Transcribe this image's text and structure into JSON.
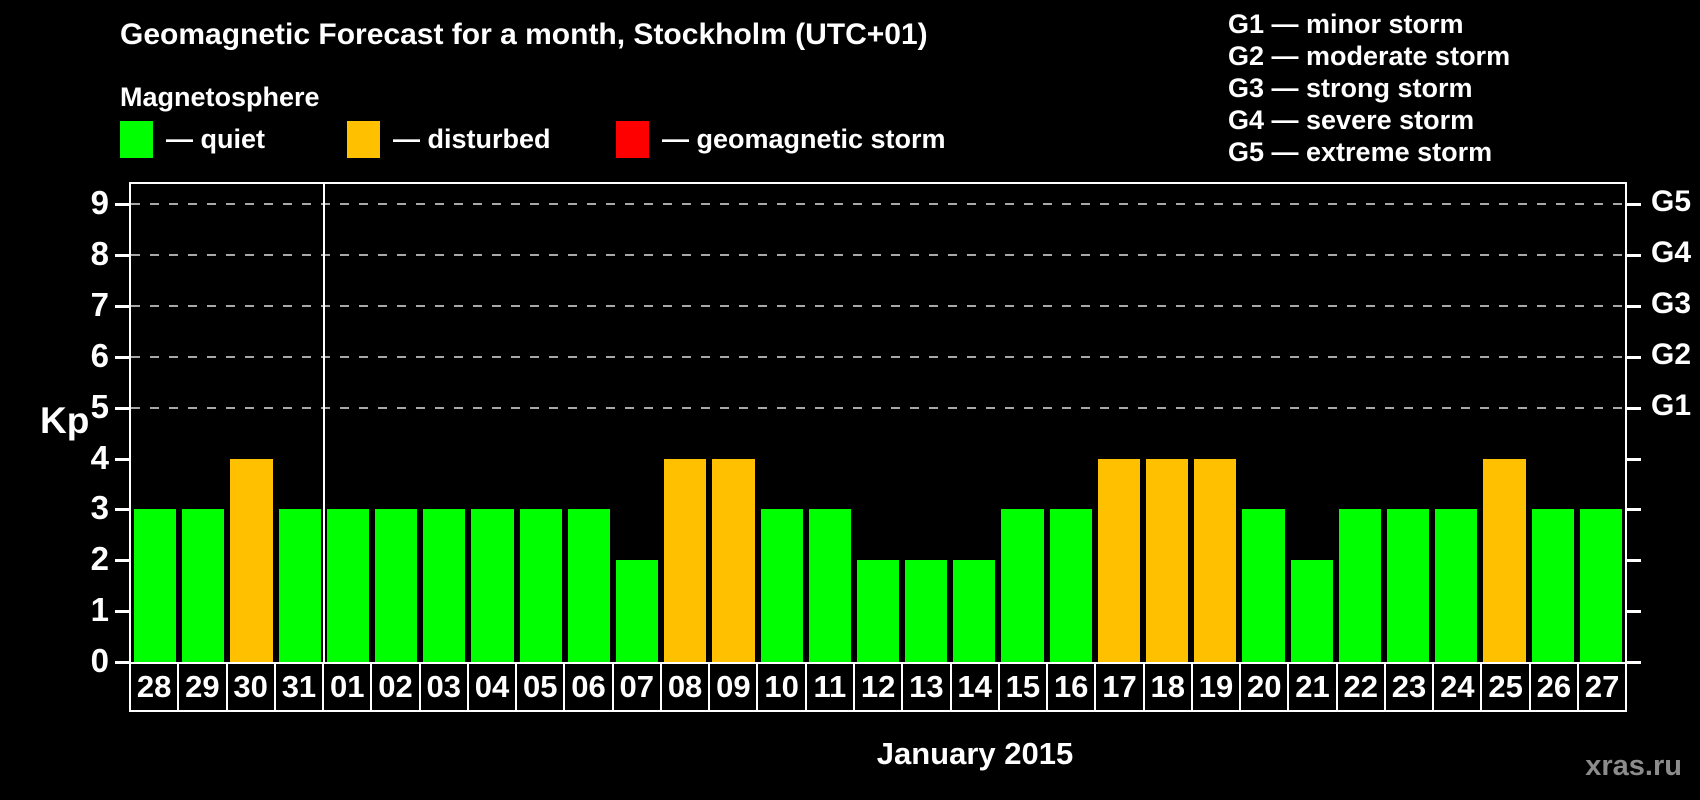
{
  "header": {
    "title": "Geomagnetic Forecast for a month, Stockholm (UTC+01)",
    "subtitle": "Magnetosphere"
  },
  "legend": {
    "items": [
      {
        "name": "quiet",
        "label": "— quiet",
        "color": "#00FF00"
      },
      {
        "name": "disturbed",
        "label": "— disturbed",
        "color": "#FFC000"
      },
      {
        "name": "storm",
        "label": "— geomagnetic storm",
        "color": "#FF0000"
      }
    ]
  },
  "g_legend": {
    "items": [
      "G1 — minor storm",
      "G2 — moderate storm",
      "G3 — strong storm",
      "G4 — severe storm",
      "G5 — extreme storm"
    ]
  },
  "axes": {
    "y_label": "Kp",
    "y_ticks": [
      0,
      1,
      2,
      3,
      4,
      5,
      6,
      7,
      8,
      9
    ],
    "right_labels": [
      {
        "kp": 5,
        "label": "G1"
      },
      {
        "kp": 6,
        "label": "G2"
      },
      {
        "kp": 7,
        "label": "G3"
      },
      {
        "kp": 8,
        "label": "G4"
      },
      {
        "kp": 9,
        "label": "G5"
      }
    ],
    "x_label": "January 2015"
  },
  "chart_data": {
    "type": "bar",
    "title": "Geomagnetic Forecast for a month, Stockholm (UTC+01)",
    "subtitle": "Magnetosphere",
    "categories": [
      "28",
      "29",
      "30",
      "31",
      "01",
      "02",
      "03",
      "04",
      "05",
      "06",
      "07",
      "08",
      "09",
      "10",
      "11",
      "12",
      "13",
      "14",
      "15",
      "16",
      "17",
      "18",
      "19",
      "20",
      "21",
      "22",
      "23",
      "24",
      "25",
      "26",
      "27"
    ],
    "values": [
      3,
      3,
      4,
      3,
      3,
      3,
      3,
      3,
      3,
      3,
      2,
      4,
      4,
      3,
      3,
      2,
      2,
      2,
      3,
      3,
      4,
      4,
      4,
      3,
      2,
      3,
      3,
      3,
      4,
      3,
      3
    ],
    "statuses": [
      "quiet",
      "quiet",
      "disturbed",
      "quiet",
      "quiet",
      "quiet",
      "quiet",
      "quiet",
      "quiet",
      "quiet",
      "quiet",
      "disturbed",
      "disturbed",
      "quiet",
      "quiet",
      "quiet",
      "quiet",
      "quiet",
      "quiet",
      "quiet",
      "disturbed",
      "disturbed",
      "disturbed",
      "quiet",
      "quiet",
      "quiet",
      "quiet",
      "quiet",
      "disturbed",
      "quiet",
      "quiet"
    ],
    "xlabel": "January 2015",
    "ylabel": "Kp",
    "ylim": [
      0,
      9.4
    ],
    "gridlines_kp": [
      5,
      6,
      7,
      8,
      9
    ],
    "month_separator_after": 4,
    "legend_position": "top",
    "grid": "dashed horizontal at Kp 5-9"
  },
  "watermark": "xras.ru",
  "colors": {
    "quiet": "#00FF00",
    "disturbed": "#FFC000",
    "storm": "#FF0000",
    "background": "#000000",
    "grid": "#A8A8A8",
    "frame": "#FFFFFF",
    "watermark": "#8C8C8C"
  }
}
